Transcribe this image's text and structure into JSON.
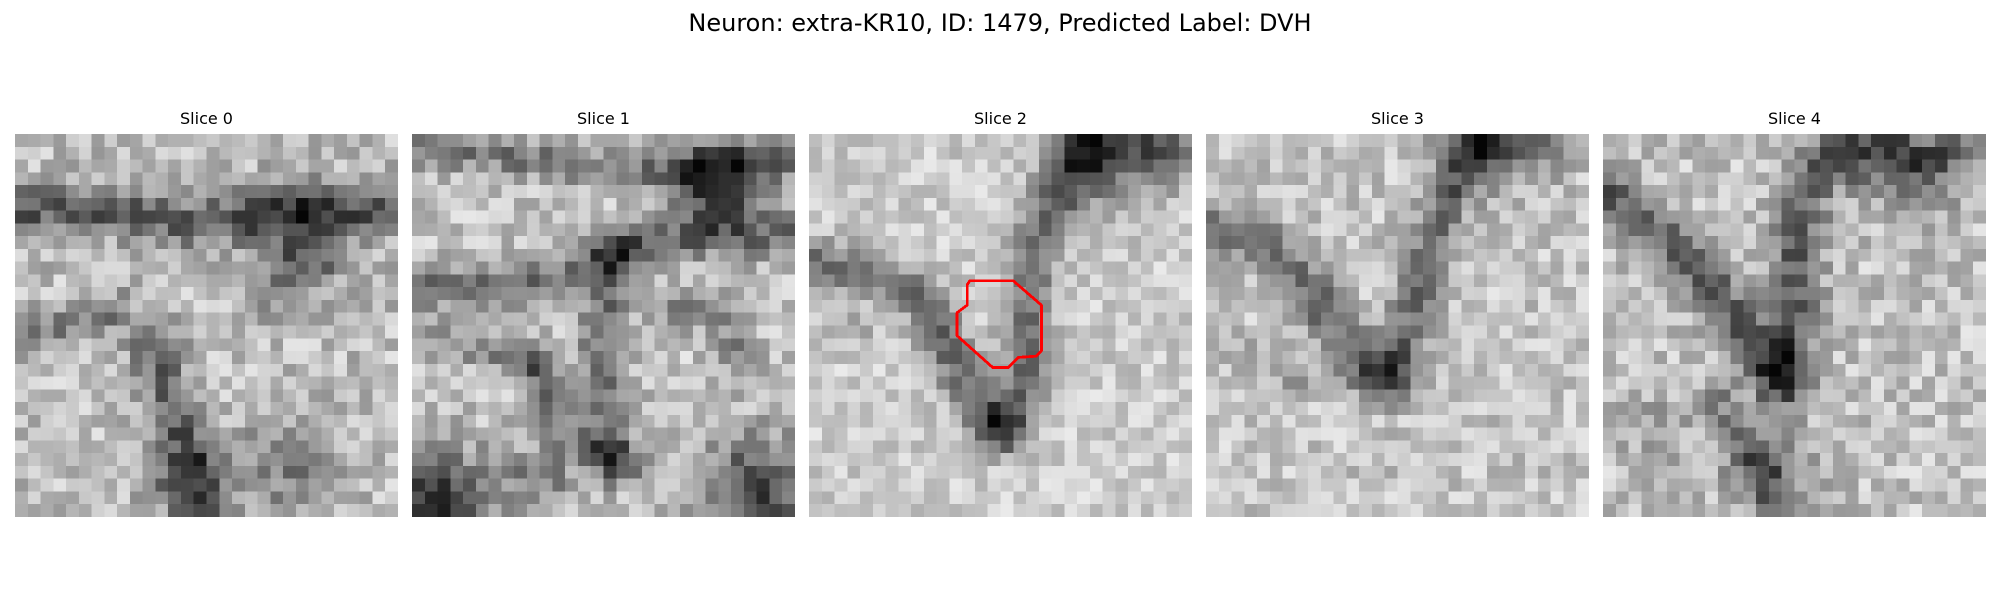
{
  "figure": {
    "title": "Neuron: extra-KR10, ID: 1479, Predicted Label: DVH"
  },
  "panels": [
    {
      "title": "Slice 0"
    },
    {
      "title": "Slice 1"
    },
    {
      "title": "Slice 2"
    },
    {
      "title": "Slice 3"
    },
    {
      "title": "Slice 4"
    }
  ],
  "colors": {
    "background": "#ffffff",
    "contour": "#ff0000",
    "colormap": "grayscale"
  }
}
